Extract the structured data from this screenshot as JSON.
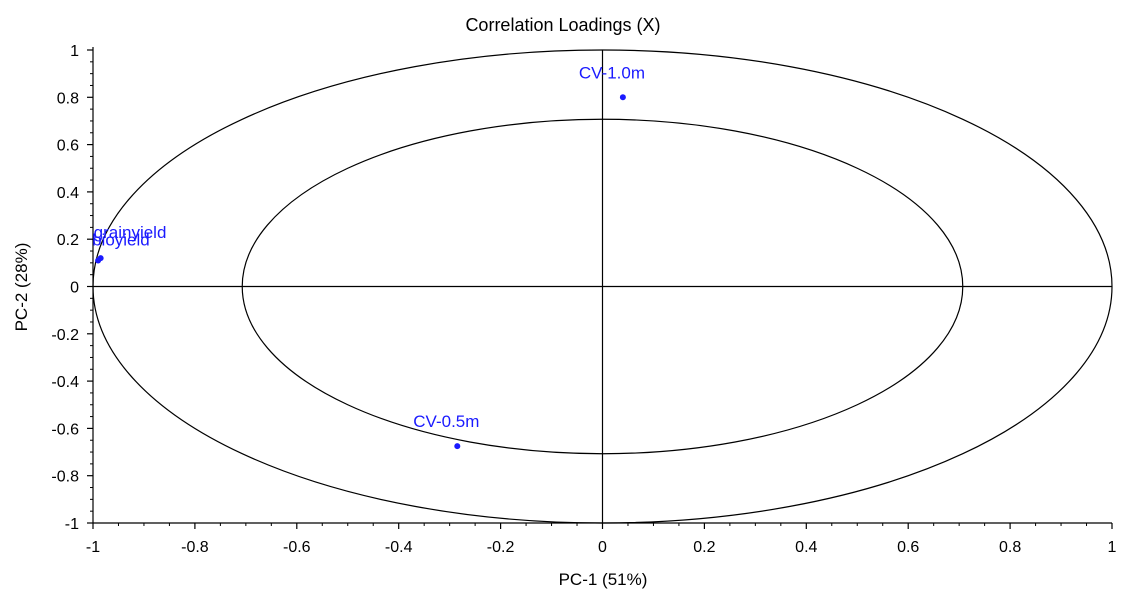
{
  "chart_data": {
    "type": "scatter",
    "title": "Correlation Loadings (X)",
    "xlabel": "PC-1 (51%)",
    "ylabel": "PC-2 (28%)",
    "xlim": [
      -1,
      1
    ],
    "ylim": [
      -1,
      1
    ],
    "x_ticks": [
      "-1",
      "-0.8",
      "-0.6",
      "-0.4",
      "-0.2",
      "0",
      "0.2",
      "0.4",
      "0.6",
      "0.8",
      "1"
    ],
    "y_ticks": [
      "1",
      "0.8",
      "0.6",
      "0.4",
      "0.2",
      "0",
      "-0.2",
      "-0.4",
      "-0.6",
      "-0.8",
      "-1"
    ],
    "x_tick_values": [
      -1,
      -0.8,
      -0.6,
      -0.4,
      -0.2,
      0,
      0.2,
      0.4,
      0.6,
      0.8,
      1
    ],
    "y_tick_values": [
      1,
      0.8,
      0.6,
      0.4,
      0.2,
      0,
      -0.2,
      -0.4,
      -0.6,
      -0.8,
      -1
    ],
    "circles": [
      1.0,
      0.7071
    ],
    "point_color": "#1a1aff",
    "axis_color": "#000000",
    "points": [
      {
        "label": "CV-1.0m",
        "x": 0.04,
        "y": 0.8
      },
      {
        "label": "CV-0.5m",
        "x": -0.285,
        "y": -0.675
      },
      {
        "label": "grainyield",
        "x": -0.985,
        "y": 0.12
      },
      {
        "label": "bioyield",
        "x": -0.99,
        "y": 0.11
      }
    ]
  }
}
